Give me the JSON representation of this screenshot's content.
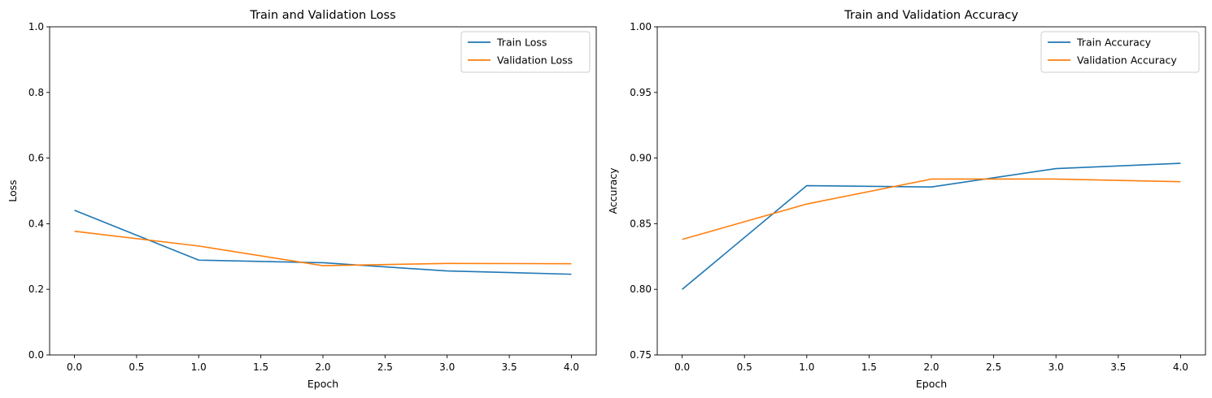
{
  "chart_data": [
    {
      "type": "line",
      "title": "Train and Validation Loss",
      "xlabel": "Epoch",
      "ylabel": "Loss",
      "xlim": [
        -0.2,
        4.2
      ],
      "ylim": [
        0.0,
        1.0
      ],
      "xticks": [
        0.0,
        0.5,
        1.0,
        1.5,
        2.0,
        2.5,
        3.0,
        3.5,
        4.0
      ],
      "xtick_labels": [
        "0.0",
        "0.5",
        "1.0",
        "1.5",
        "2.0",
        "2.5",
        "3.0",
        "3.5",
        "4.0"
      ],
      "yticks": [
        0.0,
        0.2,
        0.4,
        0.6,
        0.8,
        1.0
      ],
      "ytick_labels": [
        "0.0",
        "0.2",
        "0.4",
        "0.6",
        "0.8",
        "1.0"
      ],
      "grid": false,
      "legend_position": "top-right",
      "x": [
        0,
        1,
        2,
        3,
        4
      ],
      "series": [
        {
          "name": "Train Loss",
          "color": "#1f77b4",
          "values": [
            0.441,
            0.289,
            0.281,
            0.256,
            0.246
          ]
        },
        {
          "name": "Validation Loss",
          "color": "#ff7f0e",
          "values": [
            0.377,
            0.332,
            0.272,
            0.279,
            0.278
          ]
        }
      ]
    },
    {
      "type": "line",
      "title": "Train and Validation Accuracy",
      "xlabel": "Epoch",
      "ylabel": "Accuracy",
      "xlim": [
        -0.2,
        4.2
      ],
      "ylim": [
        0.75,
        1.0
      ],
      "xticks": [
        0.0,
        0.5,
        1.0,
        1.5,
        2.0,
        2.5,
        3.0,
        3.5,
        4.0
      ],
      "xtick_labels": [
        "0.0",
        "0.5",
        "1.0",
        "1.5",
        "2.0",
        "2.5",
        "3.0",
        "3.5",
        "4.0"
      ],
      "yticks": [
        0.75,
        0.8,
        0.85,
        0.9,
        0.95,
        1.0
      ],
      "ytick_labels": [
        "0.75",
        "0.80",
        "0.85",
        "0.90",
        "0.95",
        "1.00"
      ],
      "grid": false,
      "legend_position": "top-right",
      "x": [
        0,
        1,
        2,
        3,
        4
      ],
      "series": [
        {
          "name": "Train Accuracy",
          "color": "#1f77b4",
          "values": [
            0.8,
            0.879,
            0.878,
            0.892,
            0.896
          ]
        },
        {
          "name": "Validation Accuracy",
          "color": "#ff7f0e",
          "values": [
            0.838,
            0.865,
            0.884,
            0.884,
            0.882
          ]
        }
      ]
    }
  ]
}
